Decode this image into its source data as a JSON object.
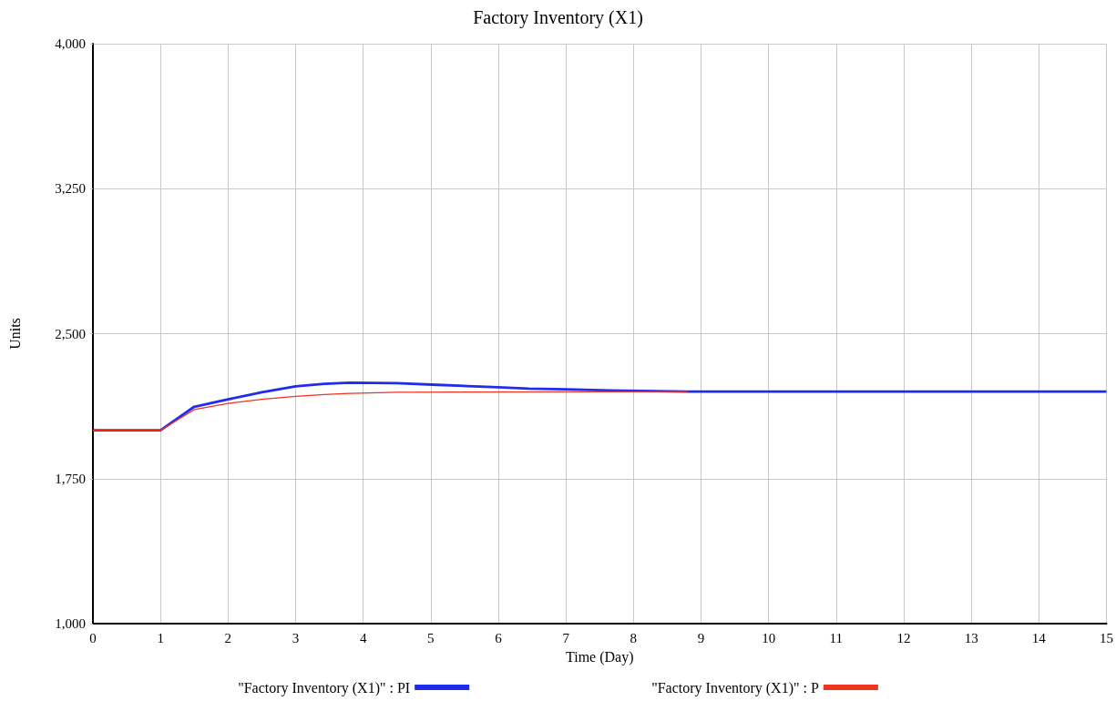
{
  "chart_data": {
    "type": "line",
    "title": "Factory Inventory (X1)",
    "xlabel": "Time (Day)",
    "ylabel": "Units",
    "xlim": [
      0,
      15
    ],
    "xticks": [
      0,
      1,
      2,
      3,
      4,
      5,
      6,
      7,
      8,
      9,
      10,
      11,
      12,
      13,
      14,
      15
    ],
    "ylim": [
      1000,
      4000
    ],
    "yticks": [
      {
        "value": 1000,
        "label": "1,000"
      },
      {
        "value": 1750,
        "label": "1,750"
      },
      {
        "value": 2500,
        "label": "2,500"
      },
      {
        "value": 3250,
        "label": "3,250"
      },
      {
        "value": 4000,
        "label": "4,000"
      }
    ],
    "grid": true,
    "legend": "bottom",
    "marker": "none",
    "line_style": "solid",
    "series": [
      {
        "name": "\"Factory Inventory (X1)\" : PI",
        "color": "#1f2cf0",
        "x": [
          0,
          1,
          1.5,
          2,
          2.5,
          3,
          3.42,
          3.8,
          4.5,
          5.1,
          5.55,
          6,
          6.45,
          7,
          7.65,
          8.8,
          15
        ],
        "values": [
          2000,
          2000,
          2122,
          2160,
          2197,
          2227,
          2240,
          2246,
          2244,
          2235,
          2229,
          2223,
          2216,
          2212,
          2206,
          2200,
          2200
        ]
      },
      {
        "name": "\"Factory Inventory (X1)\" : P",
        "color": "#f0321e",
        "x": [
          0,
          1,
          1.5,
          2,
          2.5,
          3,
          3.42,
          3.8,
          4.5,
          8.8
        ],
        "values": [
          2000,
          2000,
          2107,
          2139,
          2160,
          2176,
          2185,
          2191,
          2197,
          2200
        ]
      }
    ]
  }
}
